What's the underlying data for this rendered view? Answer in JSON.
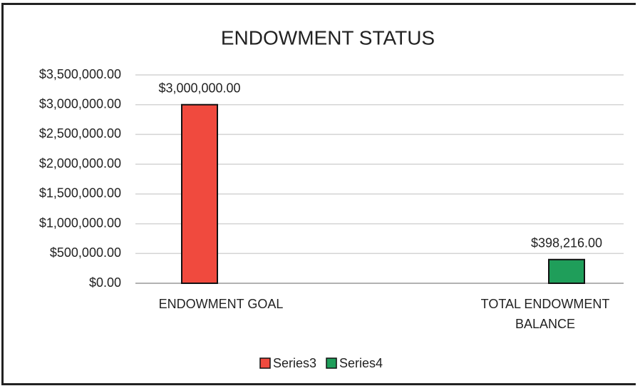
{
  "chart_data": {
    "type": "bar",
    "title": "ENDOWMENT STATUS",
    "categories": [
      "ENDOWMENT GOAL",
      "TOTAL ENDOWMENT BALANCE"
    ],
    "series": [
      {
        "name": "Series3",
        "color": "#f04a3e",
        "values": [
          3000000,
          null
        ],
        "value_labels": [
          "$3,000,000.00",
          null
        ]
      },
      {
        "name": "Series4",
        "color": "#1f9e5a",
        "values": [
          null,
          398216
        ],
        "value_labels": [
          null,
          "$398,216.00"
        ]
      }
    ],
    "ylim": [
      0,
      3500000
    ],
    "yticks": [
      {
        "value": 0,
        "label": "$0.00"
      },
      {
        "value": 500000,
        "label": "$500,000.00"
      },
      {
        "value": 1000000,
        "label": "$1,000,000.00"
      },
      {
        "value": 1500000,
        "label": "$1,500,000.00"
      },
      {
        "value": 2000000,
        "label": "$2,000,000.00"
      },
      {
        "value": 2500000,
        "label": "$2,500,000.00"
      },
      {
        "value": 3000000,
        "label": "$3,000,000.00"
      },
      {
        "value": 3500000,
        "label": "$3,500,000.00"
      }
    ],
    "grid": true,
    "legend": "bottom"
  }
}
